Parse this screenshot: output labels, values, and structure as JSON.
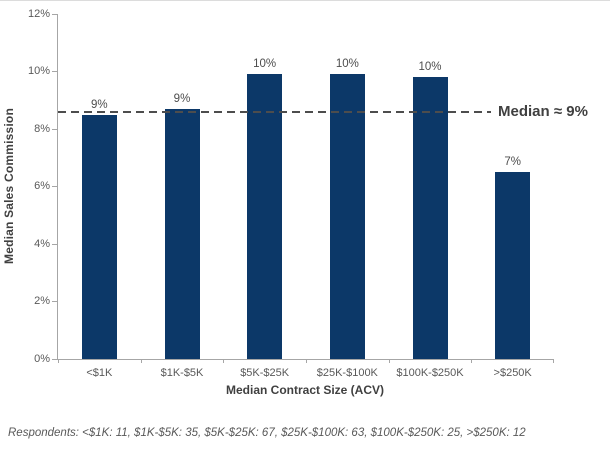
{
  "chart_data": {
    "type": "bar",
    "title": "",
    "categories": [
      "<$1K",
      "$1K-$5K",
      "$5K-$25K",
      "$25K-$100K",
      "$100K-$250K",
      ">$250K"
    ],
    "values": [
      8.5,
      8.7,
      9.9,
      9.9,
      9.8,
      6.5
    ],
    "bar_labels": [
      "9%",
      "9%",
      "10%",
      "10%",
      "10%",
      "7%"
    ],
    "xlabel": "Median Contract Size (ACV)",
    "ylabel": "Median Sales Commission",
    "ylim": [
      0,
      12
    ],
    "yticks": [
      0,
      2,
      4,
      6,
      8,
      10,
      12
    ],
    "ytick_labels": [
      "0%",
      "2%",
      "4%",
      "6%",
      "8%",
      "10%",
      "12%"
    ],
    "grid": false,
    "legend": null,
    "median_line": {
      "value": 8.6,
      "label": "Median ≈ 9%"
    },
    "colors": {
      "bar": "#0c3868",
      "axis": "#a6a6a6",
      "axis_title": "#404040",
      "tick_label": "#595959",
      "data_label": "#4d4d4d",
      "median": "#4d4d4d"
    }
  },
  "footnote": "Respondents: <$1K: 11, $1K-$5K: 35,  $5K-$25K: 67, $25K-$100K: 63, $100K-$250K: 25, >$250K: 12"
}
